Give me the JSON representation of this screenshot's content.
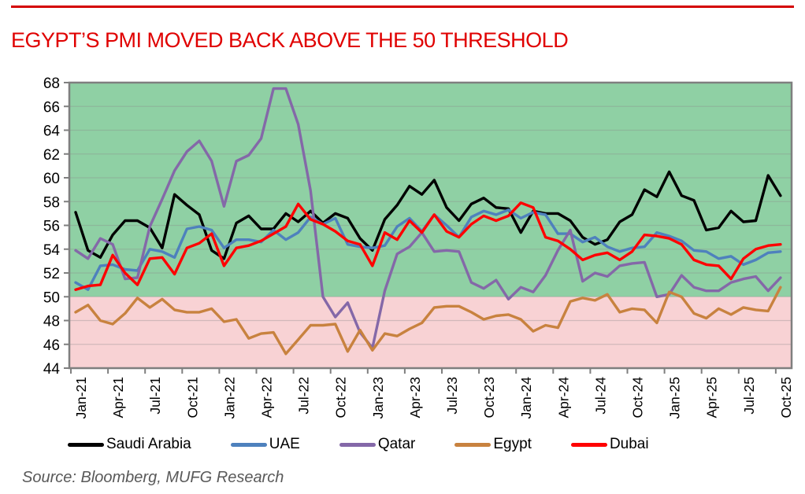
{
  "page": {
    "title": "EGYPT’S PMI MOVED BACK ABOVE THE 50 THRESHOLD",
    "title_color": "#E00000",
    "top_rule_color": "#D40000",
    "source": "Source: Bloomberg, MUFG Research",
    "source_color": "#595959"
  },
  "chart_data": {
    "type": "line",
    "title": "EGYPT’S PMI MOVED BACK ABOVE THE 50 THRESHOLD",
    "xlabel": "",
    "ylabel": "",
    "ylim": [
      44,
      68
    ],
    "ytick_step": 2,
    "threshold": 50,
    "x_tick_interval_months": 3,
    "grid": true,
    "legend_position": "bottom",
    "zone_above_color": "#8FD0A4",
    "zone_below_color": "#F8D2D4",
    "frame_color": "#7F7F7F",
    "grid_color": "#8A8A8A",
    "x": [
      "Jan-21",
      "Feb-21",
      "Mar-21",
      "Apr-21",
      "May-21",
      "Jun-21",
      "Jul-21",
      "Aug-21",
      "Sep-21",
      "Oct-21",
      "Nov-21",
      "Dec-21",
      "Jan-22",
      "Feb-22",
      "Mar-22",
      "Apr-22",
      "May-22",
      "Jun-22",
      "Jul-22",
      "Aug-22",
      "Sep-22",
      "Oct-22",
      "Nov-22",
      "Dec-22",
      "Jan-23",
      "Feb-23",
      "Mar-23",
      "Apr-23",
      "May-23",
      "Jun-23",
      "Jul-23",
      "Aug-23",
      "Sep-23",
      "Oct-23",
      "Nov-23",
      "Dec-23",
      "Jan-24",
      "Feb-24",
      "Mar-24",
      "Apr-24",
      "May-24",
      "Jun-24",
      "Jul-24",
      "Aug-24",
      "Sep-24",
      "Oct-24",
      "Nov-24",
      "Dec-24",
      "Jan-25",
      "Feb-25",
      "Mar-25",
      "Apr-25",
      "May-25",
      "Jun-25",
      "Jul-25",
      "Aug-25",
      "Sep-25",
      "Oct-25"
    ],
    "x_tick_labels": [
      "Jan-21",
      "Apr-21",
      "Jul-21",
      "Oct-21",
      "Jan-22",
      "Apr-22",
      "Jul-22",
      "Oct-22",
      "Jan-23",
      "Apr-23",
      "Jul-23",
      "Oct-23",
      "Jan-24",
      "Apr-24",
      "Jul-24",
      "Oct-24",
      "Jan-25",
      "Apr-25",
      "Jul-25",
      "Oct-25"
    ],
    "series": [
      {
        "name": "Saudi Arabia",
        "color": "#000000",
        "values": [
          57.1,
          53.9,
          53.3,
          55.2,
          56.4,
          56.4,
          55.8,
          54.1,
          58.6,
          57.7,
          56.9,
          53.9,
          53.2,
          56.2,
          56.8,
          55.7,
          55.7,
          57.0,
          56.3,
          57.2,
          56.2,
          57.0,
          56.6,
          54.9,
          53.9,
          56.5,
          57.7,
          59.3,
          58.6,
          59.8,
          57.5,
          56.4,
          57.8,
          58.3,
          57.5,
          57.4,
          55.4,
          57.2,
          57.0,
          57.0,
          56.4,
          55.0,
          54.4,
          54.8,
          56.3,
          56.9,
          59.0,
          58.4,
          60.5,
          58.5,
          58.1,
          55.6,
          55.8,
          57.2,
          56.3,
          56.4,
          60.2,
          58.5
        ]
      },
      {
        "name": "UAE",
        "color": "#4E81BD",
        "values": [
          51.2,
          50.6,
          52.6,
          52.7,
          52.3,
          52.2,
          54.0,
          53.8,
          53.3,
          55.7,
          55.9,
          55.6,
          54.1,
          54.8,
          54.8,
          54.6,
          55.6,
          54.8,
          55.4,
          56.7,
          56.1,
          56.6,
          54.4,
          54.2,
          54.1,
          54.3,
          55.9,
          56.6,
          55.5,
          56.9,
          56.0,
          55.0,
          56.7,
          57.2,
          56.9,
          57.3,
          56.6,
          57.1,
          56.9,
          55.3,
          55.3,
          54.6,
          55.0,
          54.2,
          53.8,
          54.1,
          54.2,
          55.4,
          55.1,
          54.7,
          53.9,
          53.8,
          53.2,
          53.4,
          52.7,
          53.1,
          53.7,
          53.8
        ]
      },
      {
        "name": "Qatar",
        "color": "#8468A8",
        "values": [
          53.9,
          53.2,
          54.9,
          54.4,
          51.5,
          51.6,
          55.9,
          58.2,
          60.6,
          62.2,
          63.1,
          61.4,
          57.6,
          61.4,
          61.9,
          63.3,
          67.5,
          67.5,
          64.5,
          58.9,
          50.0,
          48.3,
          49.5,
          47.0,
          45.7,
          50.5,
          53.6,
          54.2,
          55.4,
          53.8,
          53.9,
          53.8,
          51.2,
          50.7,
          51.4,
          49.8,
          50.8,
          50.4,
          51.8,
          53.9,
          55.6,
          51.3,
          52.0,
          51.7,
          52.6,
          52.8,
          52.9,
          50.0,
          50.2,
          51.8,
          50.8,
          50.5,
          50.5,
          51.2,
          51.5,
          51.7,
          50.5,
          51.6
        ]
      },
      {
        "name": "Egypt",
        "color": "#C8823F",
        "values": [
          48.7,
          49.3,
          48.0,
          47.7,
          48.6,
          49.9,
          49.1,
          49.8,
          48.9,
          48.7,
          48.7,
          49.0,
          47.9,
          48.1,
          46.5,
          46.9,
          47.0,
          45.2,
          46.4,
          47.6,
          47.6,
          47.7,
          45.4,
          47.2,
          45.5,
          46.9,
          46.7,
          47.3,
          47.8,
          49.1,
          49.2,
          49.2,
          48.7,
          48.1,
          48.4,
          48.5,
          48.1,
          47.1,
          47.6,
          47.4,
          49.6,
          49.9,
          49.7,
          50.2,
          48.7,
          49.0,
          48.9,
          47.8,
          50.4,
          50.0,
          48.6,
          48.2,
          49.0,
          48.5,
          49.1,
          48.9,
          48.8,
          50.8
        ]
      },
      {
        "name": "Dubai",
        "color": "#FF0000",
        "values": [
          50.6,
          50.9,
          51.0,
          53.5,
          52.0,
          51.0,
          53.2,
          53.3,
          51.9,
          54.1,
          54.5,
          55.3,
          52.6,
          54.1,
          54.3,
          54.7,
          55.3,
          55.9,
          57.8,
          56.5,
          56.1,
          55.5,
          54.7,
          54.4,
          52.6,
          55.4,
          54.8,
          56.4,
          55.4,
          56.9,
          55.5,
          55.0,
          56.1,
          56.8,
          56.4,
          56.8,
          57.9,
          57.5,
          55.0,
          54.7,
          54.0,
          53.1,
          53.5,
          53.7,
          53.1,
          53.8,
          55.2,
          55.1,
          54.9,
          54.4,
          53.1,
          52.7,
          52.6,
          51.5,
          53.2,
          54.0,
          54.3,
          54.4
        ]
      }
    ]
  }
}
